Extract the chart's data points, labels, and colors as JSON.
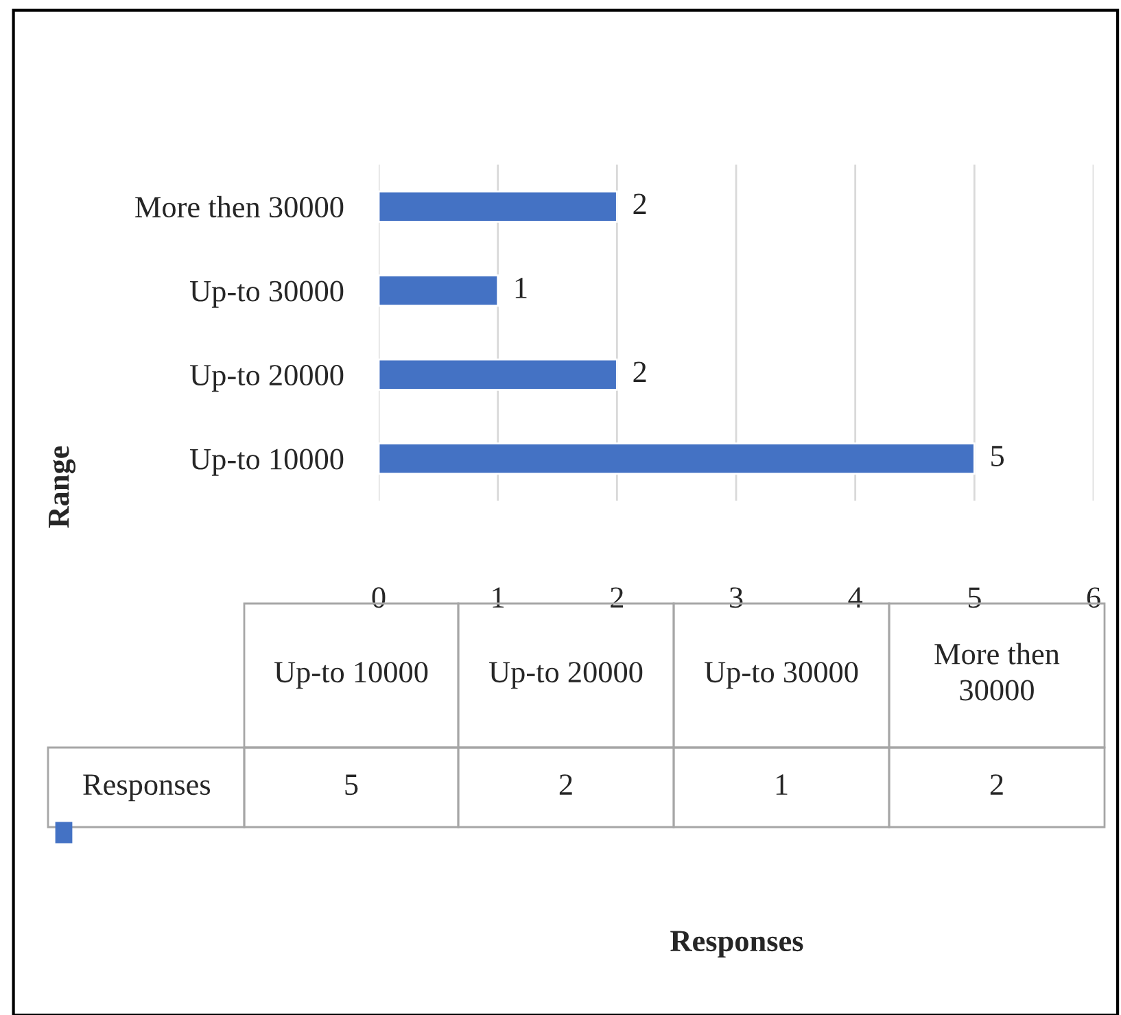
{
  "chart_data": {
    "type": "bar",
    "orientation": "horizontal",
    "annotations": [
      "Responses",
      "5",
      "2",
      "1",
      "2"
    ],
    "ylabel": "Range",
    "categories": [
      "More then 30000",
      "Up-to 30000",
      "Up-to 20000",
      "Up-to 10000"
    ],
    "series": [
      {
        "name": "Responses",
        "color": "#4472c4",
        "values": [
          2,
          1,
          2,
          5
        ]
      }
    ],
    "xlim": [
      0,
      6
    ],
    "xticks": [
      0,
      1,
      2,
      3,
      4,
      5,
      6
    ],
    "grid": "x",
    "data_labels": true
  }
}
